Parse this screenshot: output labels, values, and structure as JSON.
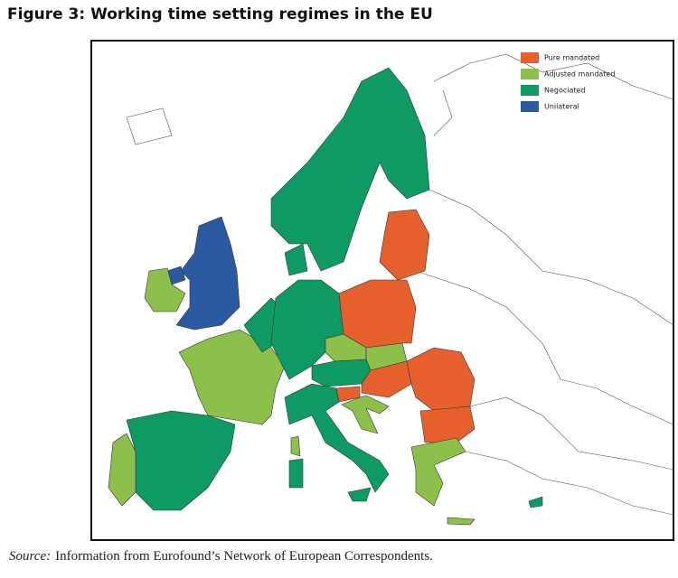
{
  "title": "Figure 3: Working time setting regimes in the EU",
  "legend": [
    {
      "label": "Pure mandated",
      "color": "#e5602c"
    },
    {
      "label": "Adjusted mandated",
      "color": "#8cc04b"
    },
    {
      "label": "Negociated",
      "color": "#0d9a63"
    },
    {
      "label": "Unilateral",
      "color": "#2c5aa0"
    }
  ],
  "source": {
    "label": "Source:",
    "text": "Information from Eurofound’s Network of European Correspondents."
  }
}
